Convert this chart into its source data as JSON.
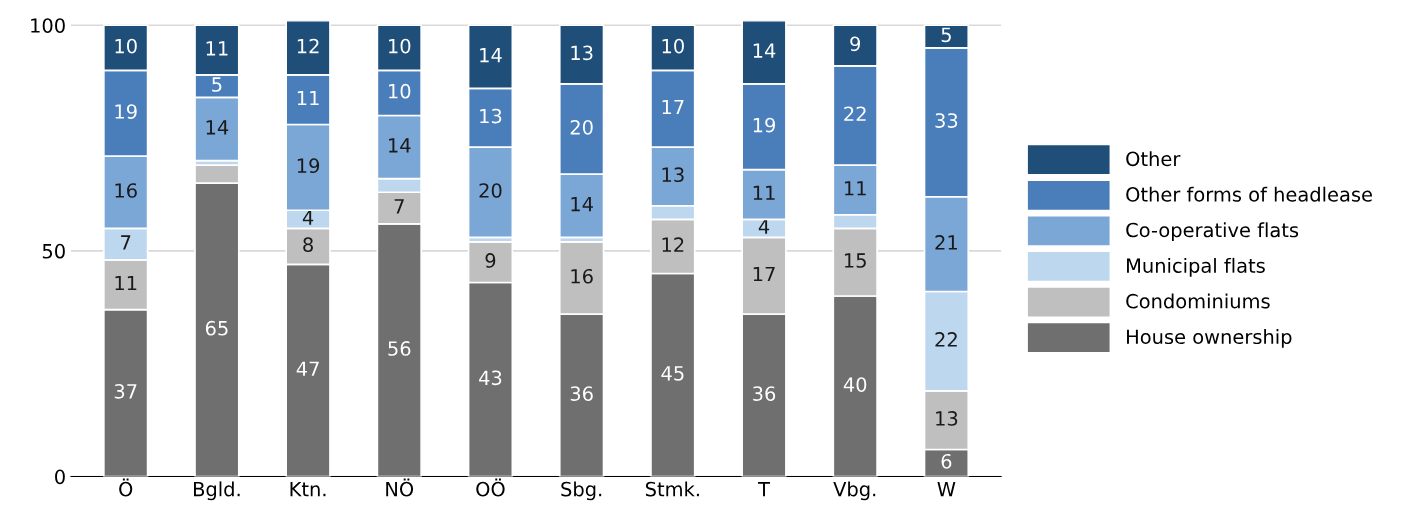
{
  "chart_data": {
    "type": "bar",
    "stacked": true,
    "categories": [
      "Ö",
      "Bgld.",
      "Ktn.",
      "NÖ",
      "OÖ",
      "Sbg.",
      "Stmk.",
      "T",
      "Vbg.",
      "W"
    ],
    "series": [
      {
        "name": "House ownership",
        "color": "#6f6f6f",
        "values": [
          37,
          65,
          47,
          56,
          43,
          36,
          45,
          36,
          40,
          6
        ],
        "value_labels": [
          "37",
          "65",
          "47",
          "56",
          "43",
          "36",
          "45",
          "36",
          "40",
          "6"
        ]
      },
      {
        "name": "Condominiums",
        "color": "#bfbfbf",
        "values": [
          11,
          4,
          8,
          7,
          9,
          16,
          12,
          17,
          15,
          13
        ],
        "value_labels": [
          "11",
          null,
          "8",
          "7",
          "9",
          "16",
          "12",
          "17",
          "15",
          "13"
        ]
      },
      {
        "name": "Municipal flats",
        "color": "#bdd7ee",
        "values": [
          7,
          1,
          4,
          3,
          1,
          1,
          3,
          4,
          3,
          22
        ],
        "value_labels": [
          "7",
          null,
          "4",
          null,
          null,
          null,
          null,
          "4",
          null,
          "22"
        ]
      },
      {
        "name": "Co-operative flats",
        "color": "#7ba7d7",
        "values": [
          16,
          14,
          19,
          14,
          20,
          14,
          13,
          11,
          11,
          21
        ],
        "value_labels": [
          "16",
          "14",
          "19",
          "14",
          "20",
          "14",
          "13",
          "11",
          "11",
          "21"
        ]
      },
      {
        "name": "Other forms of headlease",
        "color": "#4a7ebb",
        "values": [
          19,
          5,
          11,
          10,
          13,
          20,
          17,
          19,
          22,
          33
        ],
        "value_labels": [
          "19",
          "5",
          "11",
          "10",
          "13",
          "20",
          "17",
          "19",
          "22",
          "33"
        ]
      },
      {
        "name": "Other",
        "color": "#1f4e79",
        "values": [
          10,
          11,
          12,
          10,
          14,
          13,
          10,
          14,
          9,
          5
        ],
        "value_labels": [
          "10",
          "11",
          "12",
          "10",
          "14",
          "13",
          "10",
          "14",
          "9",
          "5"
        ]
      }
    ],
    "ylim": [
      0,
      101
    ],
    "yticks": [
      0,
      50,
      100
    ],
    "grid": "y",
    "legend": "right"
  }
}
